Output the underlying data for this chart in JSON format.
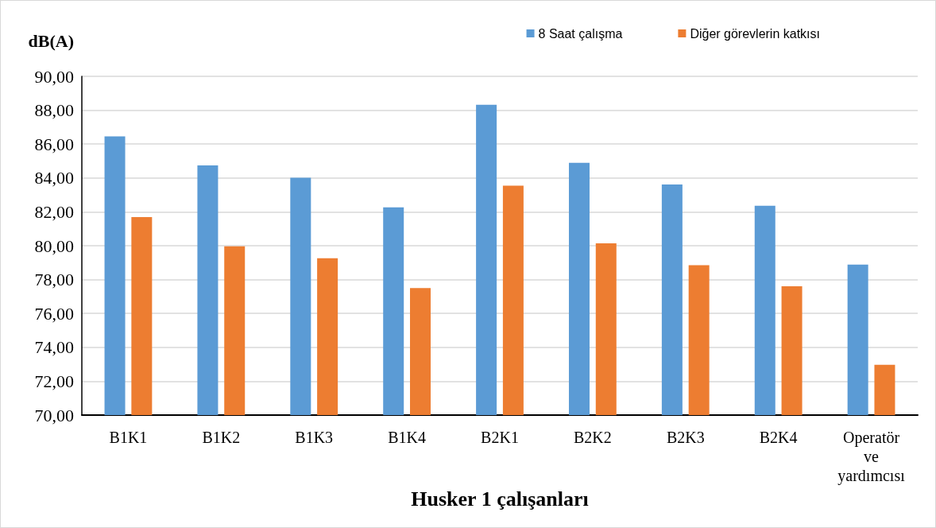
{
  "chart_data": {
    "type": "bar",
    "xlabel": "Husker 1 çalışanları",
    "ylabel": "dB(A)",
    "categories": [
      "B1K1",
      "B1K2",
      "B1K3",
      "B1K4",
      "B2K1",
      "B2K2",
      "B2K3",
      "B2K4",
      "Operatör ve yardımcısı"
    ],
    "series": [
      {
        "name": "8 Saat çalışma",
        "color": "#5b9bd5",
        "values": [
          86.45,
          84.74,
          84.01,
          82.27,
          88.32,
          84.9,
          83.61,
          82.36,
          78.89
        ]
      },
      {
        "name": "Diğer görevlerin katkısı",
        "color": "#ed7d31",
        "values": [
          81.69,
          79.97,
          79.26,
          77.5,
          83.54,
          80.14,
          78.85,
          77.6,
          72.97
        ]
      }
    ],
    "ylim": [
      70,
      90
    ],
    "yticks": [
      {
        "value": 70,
        "label": "70,00"
      },
      {
        "value": 72,
        "label": "72,00"
      },
      {
        "value": 74,
        "label": "74,00"
      },
      {
        "value": 76,
        "label": "76,00"
      },
      {
        "value": 78,
        "label": "78,00"
      },
      {
        "value": 80,
        "label": "80,00"
      },
      {
        "value": 82,
        "label": "82,00"
      },
      {
        "value": 84,
        "label": "84,00"
      },
      {
        "value": 86,
        "label": "86,00"
      },
      {
        "value": 88,
        "label": "88,00"
      },
      {
        "value": 90,
        "label": "90,00"
      }
    ],
    "grid": "y",
    "legend": "top right"
  }
}
